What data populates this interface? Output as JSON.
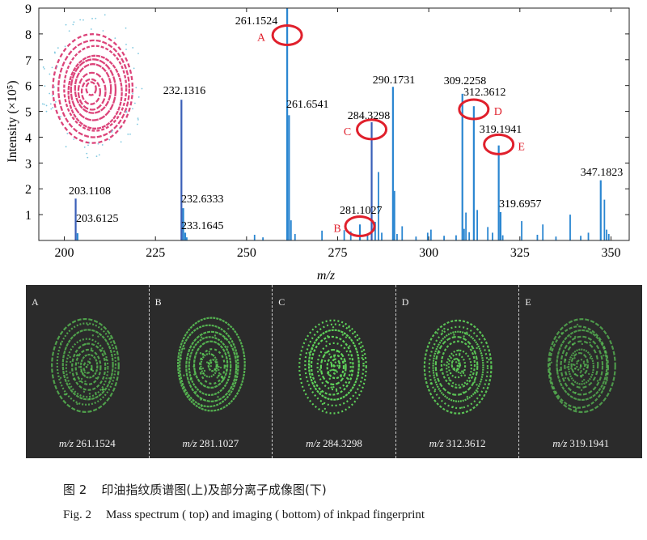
{
  "chart_data": {
    "type": "bar",
    "title": "",
    "xlabel": "m/z",
    "ylabel": "Intensity (×10⁵)",
    "xlim": [
      193,
      355
    ],
    "ylim": [
      0,
      9
    ],
    "xticks": [
      200,
      225,
      250,
      275,
      300,
      325,
      350
    ],
    "yticks": [
      1,
      2,
      3,
      4,
      5,
      6,
      7,
      8,
      9
    ],
    "peaks_labeled": [
      {
        "mz": 203.1108,
        "intensity": 1.62,
        "label": "203.1108"
      },
      {
        "mz": 203.6125,
        "intensity": 0.28,
        "label": "203.6125"
      },
      {
        "mz": 232.1316,
        "intensity": 5.45,
        "label": "232.1316"
      },
      {
        "mz": 232.6333,
        "intensity": 1.25,
        "label": "232.6333"
      },
      {
        "mz": 233.1645,
        "intensity": 0.3,
        "label": "233.1645"
      },
      {
        "mz": 261.1524,
        "intensity": 9.0,
        "label": "261.1524"
      },
      {
        "mz": 261.6541,
        "intensity": 4.85,
        "label": "261.6541"
      },
      {
        "mz": 281.1027,
        "intensity": 0.62,
        "label": "281.1027"
      },
      {
        "mz": 284.3298,
        "intensity": 4.58,
        "label": "284.3298"
      },
      {
        "mz": 290.1731,
        "intensity": 5.95,
        "label": "290.1731"
      },
      {
        "mz": 309.2258,
        "intensity": 5.68,
        "label": "309.2258"
      },
      {
        "mz": 312.3612,
        "intensity": 5.2,
        "label": "312.3612"
      },
      {
        "mz": 319.1941,
        "intensity": 3.68,
        "label": "319.1941"
      },
      {
        "mz": 319.6957,
        "intensity": 1.1,
        "label": "319.6957"
      },
      {
        "mz": 347.1823,
        "intensity": 2.33,
        "label": "347.1823"
      }
    ],
    "peaks_minor": [
      {
        "mz": 233.6,
        "intensity": 0.12
      },
      {
        "mz": 252.2,
        "intensity": 0.22
      },
      {
        "mz": 254.5,
        "intensity": 0.12
      },
      {
        "mz": 262.2,
        "intensity": 0.78
      },
      {
        "mz": 263.3,
        "intensity": 0.25
      },
      {
        "mz": 270.7,
        "intensity": 0.38
      },
      {
        "mz": 276.8,
        "intensity": 0.4
      },
      {
        "mz": 278.6,
        "intensity": 0.35
      },
      {
        "mz": 283.2,
        "intensity": 0.22
      },
      {
        "mz": 285.3,
        "intensity": 0.72
      },
      {
        "mz": 286.2,
        "intensity": 2.65
      },
      {
        "mz": 287.1,
        "intensity": 0.3
      },
      {
        "mz": 290.6,
        "intensity": 1.92
      },
      {
        "mz": 291.3,
        "intensity": 0.25
      },
      {
        "mz": 292.7,
        "intensity": 0.55
      },
      {
        "mz": 296.5,
        "intensity": 0.15
      },
      {
        "mz": 299.7,
        "intensity": 0.3
      },
      {
        "mz": 300.6,
        "intensity": 0.42
      },
      {
        "mz": 304.2,
        "intensity": 0.18
      },
      {
        "mz": 307.5,
        "intensity": 0.2
      },
      {
        "mz": 309.7,
        "intensity": 0.45
      },
      {
        "mz": 310.2,
        "intensity": 1.08
      },
      {
        "mz": 311.1,
        "intensity": 0.32
      },
      {
        "mz": 313.3,
        "intensity": 1.18
      },
      {
        "mz": 316.2,
        "intensity": 0.52
      },
      {
        "mz": 317.5,
        "intensity": 0.3
      },
      {
        "mz": 320.3,
        "intensity": 0.2
      },
      {
        "mz": 325.5,
        "intensity": 0.75
      },
      {
        "mz": 329.8,
        "intensity": 0.22
      },
      {
        "mz": 331.3,
        "intensity": 0.62
      },
      {
        "mz": 334.9,
        "intensity": 0.15
      },
      {
        "mz": 338.8,
        "intensity": 1.0
      },
      {
        "mz": 341.7,
        "intensity": 0.18
      },
      {
        "mz": 343.8,
        "intensity": 0.3
      },
      {
        "mz": 348.2,
        "intensity": 1.58
      },
      {
        "mz": 348.8,
        "intensity": 0.42
      },
      {
        "mz": 349.4,
        "intensity": 0.25
      }
    ],
    "annotations": [
      {
        "letter": "A",
        "mz": 261.1524,
        "intensity": 7.95
      },
      {
        "letter": "B",
        "mz": 281.1027,
        "intensity": 0.55
      },
      {
        "letter": "C",
        "mz": 284.3298,
        "intensity": 4.3
      },
      {
        "letter": "D",
        "mz": 312.3612,
        "intensity": 5.08
      },
      {
        "letter": "E",
        "mz": 319.1941,
        "intensity": 3.72
      }
    ]
  },
  "panels": [
    {
      "letter": "A",
      "mz_prefix": "m/z",
      "mz_value": "261.1524",
      "brightness": 0.7
    },
    {
      "letter": "B",
      "mz_prefix": "m/z",
      "mz_value": "281.1027",
      "brightness": 0.8
    },
    {
      "letter": "C",
      "mz_prefix": "m/z",
      "mz_value": "284.3298",
      "brightness": 1.0
    },
    {
      "letter": "D",
      "mz_prefix": "m/z",
      "mz_value": "312.3612",
      "brightness": 0.9
    },
    {
      "letter": "E",
      "mz_prefix": "m/z",
      "mz_value": "319.1941",
      "brightness": 0.65
    }
  ],
  "caption": {
    "cn_number": "图 2",
    "cn_text": "印油指纹质谱图(上)及部分离子成像图(下)",
    "en_number": "Fig. 2",
    "en_text": "Mass spectrum ( top) and imaging ( bottom) of inkpad fingerprint"
  },
  "colors": {
    "peak": "#2a86d1",
    "peak_dark": "#3a5fb8",
    "annotation": "#e0202c",
    "inset": "#d8306b",
    "inset_speck": "#7fc8e0",
    "panel_bg": "#2b2b2b",
    "panel_print": "#5fd35a"
  }
}
